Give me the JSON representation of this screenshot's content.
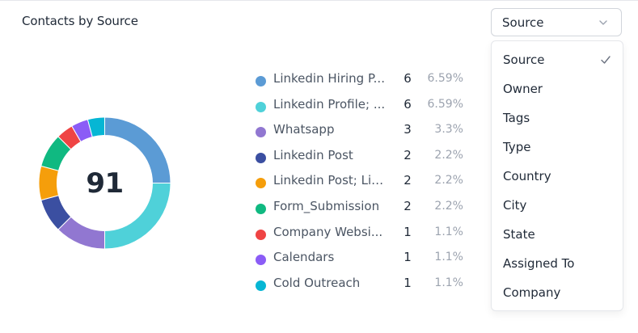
{
  "card": {
    "title": "Contacts by Source",
    "total": "91"
  },
  "select": {
    "value": "Source"
  },
  "dropdown": {
    "selected": "Source",
    "options": [
      "Source",
      "Owner",
      "Tags",
      "Type",
      "Country",
      "City",
      "State",
      "Assigned To",
      "Company"
    ]
  },
  "chart_data": {
    "type": "pie",
    "title": "Contacts by Source",
    "center_label": "91",
    "labels": [
      "Linkedin Hiring P...",
      "Linkedin Profile; ...",
      "Whatsapp",
      "Linkedin Post",
      "Linkedin Post; Lin...",
      "Form_Submission",
      "Company Websi...",
      "Calendars",
      "Cold Outreach"
    ],
    "values": [
      6,
      6,
      3,
      2,
      2,
      2,
      1,
      1,
      1
    ],
    "percents": [
      "6.59%",
      "6.59%",
      "3.3%",
      "2.2%",
      "2.2%",
      "2.2%",
      "1.1%",
      "1.1%",
      "1.1%"
    ],
    "colors": [
      "#5b9bd5",
      "#4fd1d9",
      "#9177d1",
      "#3b4fa1",
      "#f59e0b",
      "#10b981",
      "#ef4444",
      "#8b5cf6",
      "#06b6d4"
    ],
    "legend_position": "right",
    "style": "donut"
  }
}
